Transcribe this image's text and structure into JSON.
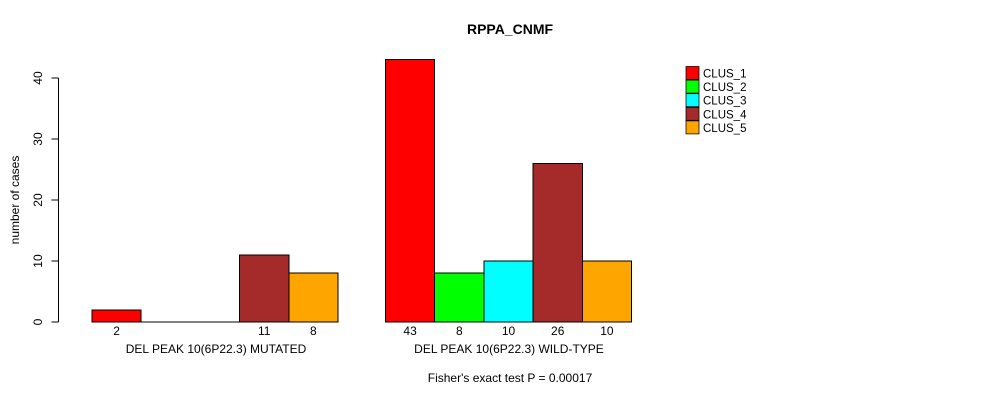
{
  "chart_data": {
    "type": "bar",
    "title": "RPPA_CNMF",
    "ylabel": "number of cases",
    "xlabel": "",
    "ylim": [
      0,
      40
    ],
    "yticks": [
      0,
      10,
      20,
      30,
      40
    ],
    "grid": false,
    "legend_position": "right-outside",
    "categories": [
      "DEL PEAK 10(6P22.3) MUTATED",
      "DEL PEAK 10(6P22.3) WILD-TYPE"
    ],
    "series": [
      {
        "name": "CLUS_1",
        "color": "#FF0000",
        "values": [
          2,
          43
        ]
      },
      {
        "name": "CLUS_2",
        "color": "#00FF00",
        "values": [
          0,
          8
        ]
      },
      {
        "name": "CLUS_3",
        "color": "#00FFFF",
        "values": [
          0,
          10
        ]
      },
      {
        "name": "CLUS_4",
        "color": "#A52A2A",
        "values": [
          11,
          26
        ]
      },
      {
        "name": "CLUS_5",
        "color": "#FFA500",
        "values": [
          8,
          10
        ]
      }
    ],
    "bar_value_labels": [
      [
        "2",
        "",
        "",
        "11",
        "8"
      ],
      [
        "43",
        "8",
        "10",
        "26",
        "10"
      ]
    ],
    "annotation": "Fisher's exact test P = 0.00017"
  },
  "colors": {
    "background": "#FFFFFF",
    "axis": "#000000",
    "text": "#000000"
  }
}
